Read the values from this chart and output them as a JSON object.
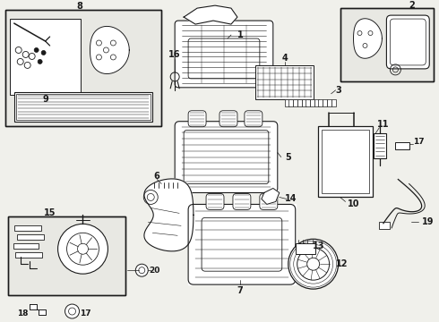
{
  "bg_color": "#f0f0eb",
  "line_color": "#1a1a1a",
  "fig_width": 4.9,
  "fig_height": 3.6,
  "dpi": 100,
  "white": "#ffffff",
  "gray_light": "#e8e8e3"
}
